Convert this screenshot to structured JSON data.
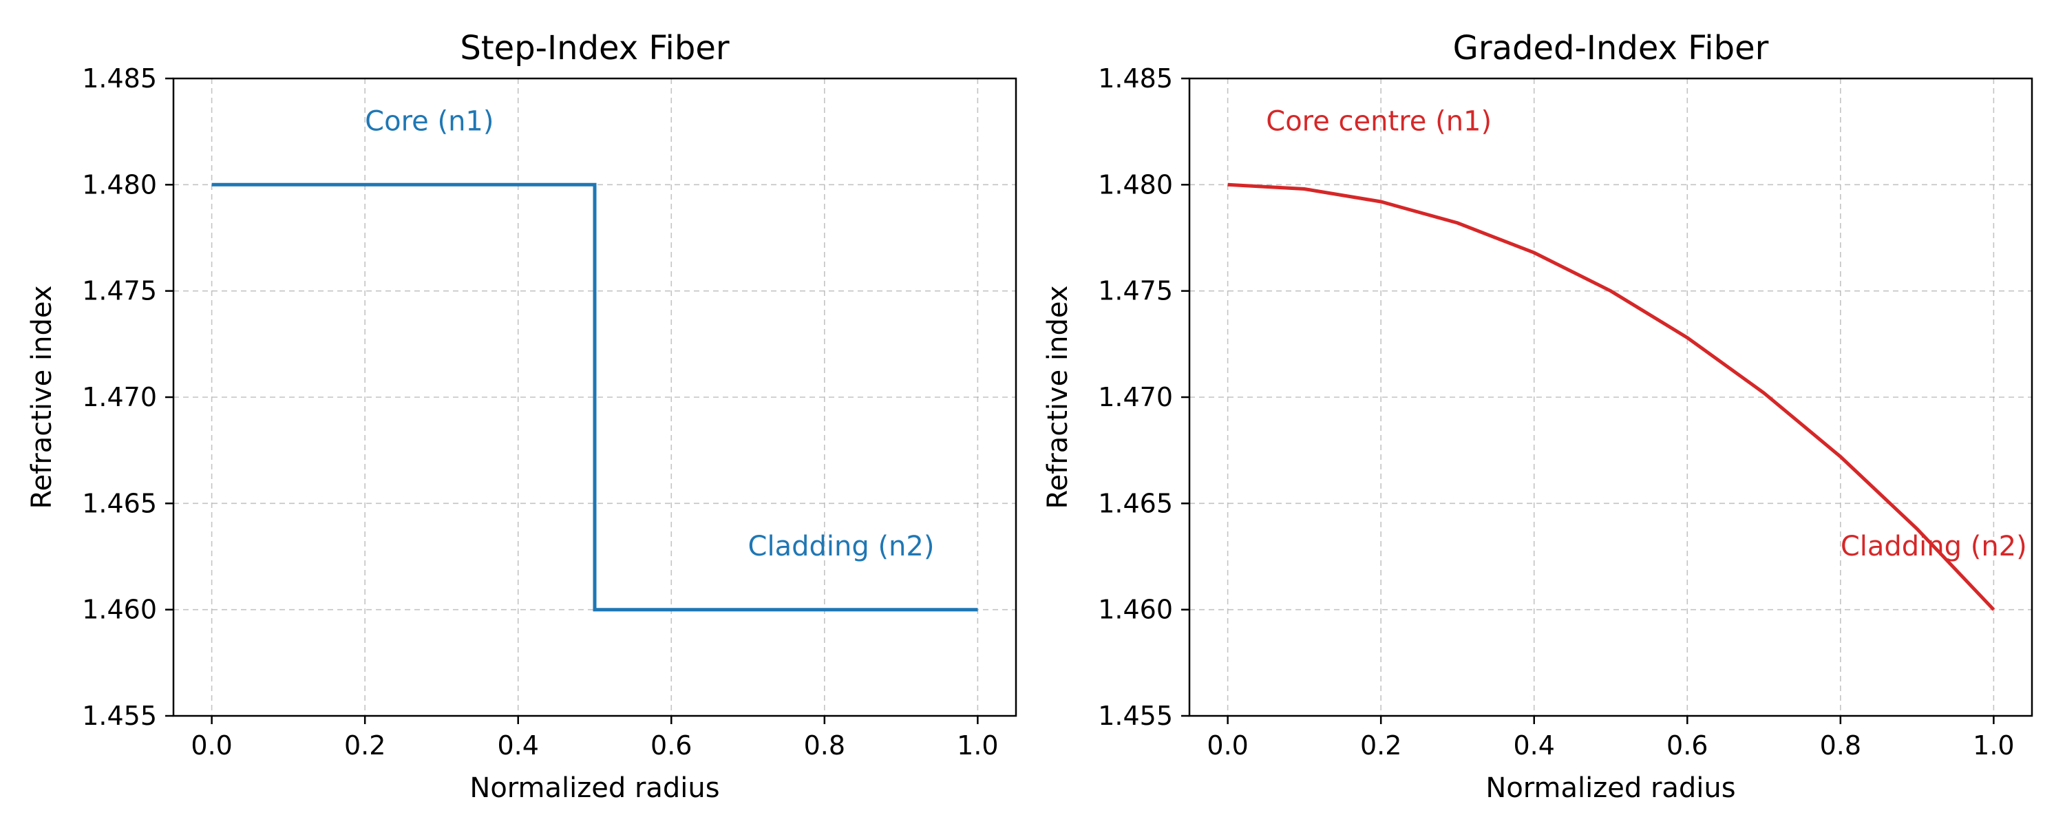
{
  "chart_data": [
    {
      "type": "line",
      "title": "Step-Index Fiber",
      "xlabel": "Normalized radius",
      "ylabel": "Refractive index",
      "xlim": [
        -0.05,
        1.05
      ],
      "ylim": [
        1.455,
        1.485
      ],
      "x_ticks": [
        "0.0",
        "0.2",
        "0.4",
        "0.6",
        "0.8",
        "1.0"
      ],
      "y_ticks": [
        "1.455",
        "1.460",
        "1.465",
        "1.470",
        "1.475",
        "1.480",
        "1.485"
      ],
      "grid": true,
      "color": "#1f77b4",
      "series": [
        {
          "x": [
            0.0,
            0.5,
            0.5,
            1.0
          ],
          "y": [
            1.48,
            1.48,
            1.46,
            1.46
          ]
        }
      ],
      "annotations": [
        {
          "text": "Core (n1)",
          "x": 0.2,
          "y": 1.483
        },
        {
          "text": "Cladding (n2)",
          "x": 0.7,
          "y": 1.463
        }
      ]
    },
    {
      "type": "line",
      "title": "Graded-Index Fiber",
      "xlabel": "Normalized radius",
      "ylabel": "Refractive index",
      "xlim": [
        -0.05,
        1.05
      ],
      "ylim": [
        1.455,
        1.485
      ],
      "x_ticks": [
        "0.0",
        "0.2",
        "0.4",
        "0.6",
        "0.8",
        "1.0"
      ],
      "y_ticks": [
        "1.455",
        "1.460",
        "1.465",
        "1.470",
        "1.475",
        "1.480",
        "1.485"
      ],
      "grid": true,
      "color": "#d62728",
      "series": [
        {
          "x": [
            0.0,
            0.1,
            0.2,
            0.3,
            0.4,
            0.5,
            0.6,
            0.7,
            0.8,
            0.9,
            1.0
          ],
          "y": [
            1.48,
            1.4798,
            1.4792,
            1.4782,
            1.4768,
            1.475,
            1.4728,
            1.4702,
            1.4672,
            1.4638,
            1.46
          ]
        }
      ],
      "annotations": [
        {
          "text": "Core centre (n1)",
          "x": 0.05,
          "y": 1.483
        },
        {
          "text": "Cladding (n2)",
          "x": 0.8,
          "y": 1.463
        }
      ]
    }
  ]
}
